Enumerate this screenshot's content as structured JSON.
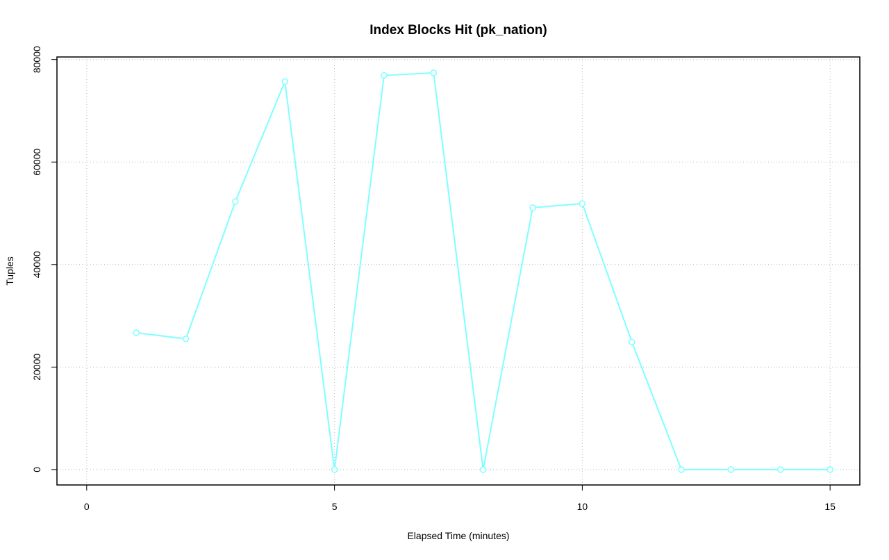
{
  "chart_data": {
    "type": "line",
    "title": "Index Blocks Hit (pk_nation)",
    "x_label": "Elapsed Time (minutes)",
    "y_label": "Tuples",
    "x": [
      1,
      2,
      3,
      4,
      5,
      6,
      7,
      8,
      9,
      10,
      11,
      12,
      13,
      14,
      15
    ],
    "series": [
      {
        "name": "pk_nation",
        "color": "#7fffff",
        "values": [
          26700,
          25500,
          52300,
          75700,
          0,
          76900,
          77400,
          0,
          51100,
          51900,
          24900,
          0,
          0,
          0,
          0
        ]
      }
    ],
    "xlim": [
      -0.6,
      15.6
    ],
    "ylim": [
      -3000,
      80500
    ],
    "xticks": [
      0,
      5,
      10,
      15
    ],
    "yticks": [
      0,
      20000,
      40000,
      60000,
      80000
    ],
    "grid": true,
    "markers": true
  }
}
